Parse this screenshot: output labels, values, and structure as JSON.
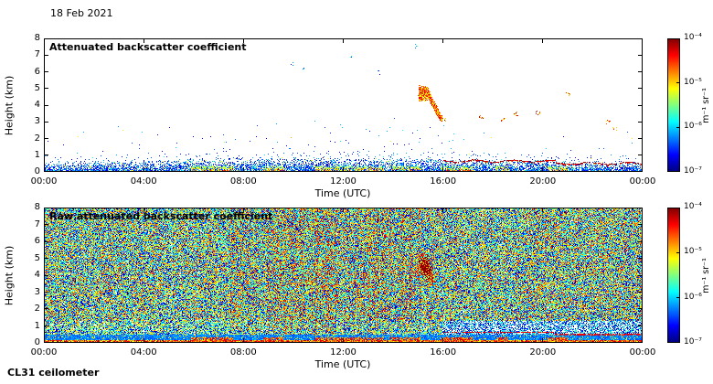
{
  "page": {
    "date_label": "18 Feb 2021",
    "instrument_label": "CL31 ceilometer"
  },
  "chart_data": [
    {
      "type": "heatmap",
      "panel": "top",
      "title": "Attenuated backscatter coefficient",
      "xlabel": "Time (UTC)",
      "ylabel": "Height (km)",
      "x_ticks": [
        "00:00",
        "04:00",
        "08:00",
        "12:00",
        "16:00",
        "20:00",
        "00:00"
      ],
      "x_range_hours": [
        0,
        24
      ],
      "y_ticks": [
        "0",
        "1",
        "2",
        "3",
        "4",
        "5",
        "6",
        "7",
        "8"
      ],
      "y_range_km": [
        0,
        8
      ],
      "colorscale": {
        "type": "jet",
        "log10_range": [
          -7,
          -4
        ],
        "tick_labels": [
          "10⁻⁴",
          "10⁻⁵",
          "10⁻⁶",
          "10⁻⁷"
        ],
        "unit": "m⁻¹ sr⁻¹"
      },
      "background": "white below 10⁻⁷",
      "features": {
        "boundary_layer": {
          "h_km": [
            0,
            0.7
          ],
          "t_hours": [
            0,
            24
          ],
          "typical_log10": -6.3
        },
        "surface_strong_patches": [
          [
            5.9,
            7.6
          ],
          [
            8.8,
            9.6
          ],
          [
            10.9,
            13.6
          ],
          [
            13.9,
            15.1
          ],
          [
            15.9,
            17.2
          ],
          [
            18.1,
            18.6
          ],
          [
            20.2,
            21.0
          ]
        ],
        "bl_top_line": [
          {
            "t": [
              16.0,
              20.5
            ],
            "h": 0.62
          },
          {
            "t": [
              20.5,
              24.0
            ],
            "h": 0.48
          }
        ],
        "virga": {
          "t": [
            15.0,
            15.9
          ],
          "h": [
            3.2,
            5.2
          ],
          "peak_log10": -4.5
        },
        "cloud_dots": [
          {
            "t": 16.0,
            "h": 3.15
          },
          {
            "t": 17.5,
            "h": 3.3
          },
          {
            "t": 18.4,
            "h": 3.05
          },
          {
            "t": 18.9,
            "h": 3.45
          },
          {
            "t": 19.8,
            "h": 3.5
          },
          {
            "t": 21.0,
            "h": 4.65
          },
          {
            "t": 22.6,
            "h": 2.95
          },
          {
            "t": 22.85,
            "h": 2.6
          }
        ],
        "high_specks": [
          {
            "t": 9.9,
            "h": 6.4
          },
          {
            "t": 10.4,
            "h": 6.2
          },
          {
            "t": 12.3,
            "h": 6.9
          },
          {
            "t": 13.4,
            "h": 5.9
          },
          {
            "t": 14.9,
            "h": 7.5
          }
        ]
      }
    },
    {
      "type": "heatmap",
      "panel": "bottom",
      "title": "Raw attenuated backscatter coefficient",
      "xlabel": "Time (UTC)",
      "ylabel": "Height (km)",
      "x_ticks": [
        "00:00",
        "04:00",
        "08:00",
        "12:00",
        "16:00",
        "20:00",
        "00:00"
      ],
      "x_range_hours": [
        0,
        24
      ],
      "y_ticks": [
        "0",
        "1",
        "2",
        "3",
        "4",
        "5",
        "6",
        "7",
        "8"
      ],
      "y_range_km": [
        0,
        8
      ],
      "colorscale": {
        "type": "jet",
        "log10_range": [
          -7,
          -4
        ],
        "tick_labels": [
          "10⁻⁴",
          "10⁻⁵",
          "10⁻⁶",
          "10⁻⁷"
        ],
        "unit": "m⁻¹ sr⁻¹"
      },
      "features": {
        "noise_field": {
          "description": "full-field speckle noise",
          "typical_log10_range": [
            -6.5,
            -5.0
          ]
        },
        "enhanced_noise_streaks": {
          "t_hours": [
            7.5,
            14.9
          ]
        },
        "low_signal_band": {
          "t": [
            16.0,
            24.0
          ],
          "h": [
            0.45,
            1.3
          ]
        },
        "surface_layer": {
          "h": [
            0,
            0.5
          ],
          "typical_log10": -6.4
        },
        "virga": {
          "t": [
            15.0,
            15.9
          ],
          "h": [
            3.2,
            5.2
          ],
          "peak_log10": -4.5
        },
        "bl_top_line": [
          {
            "t": [
              16.0,
              20.5
            ],
            "h": 0.62
          },
          {
            "t": [
              20.5,
              24.0
            ],
            "h": 0.48
          }
        ],
        "surface_strong_patches": [
          [
            5.9,
            7.6
          ],
          [
            8.8,
            9.6
          ],
          [
            10.9,
            13.6
          ],
          [
            13.9,
            15.1
          ],
          [
            15.9,
            17.2
          ],
          [
            18.1,
            18.6
          ],
          [
            20.2,
            21.0
          ]
        ]
      }
    }
  ]
}
